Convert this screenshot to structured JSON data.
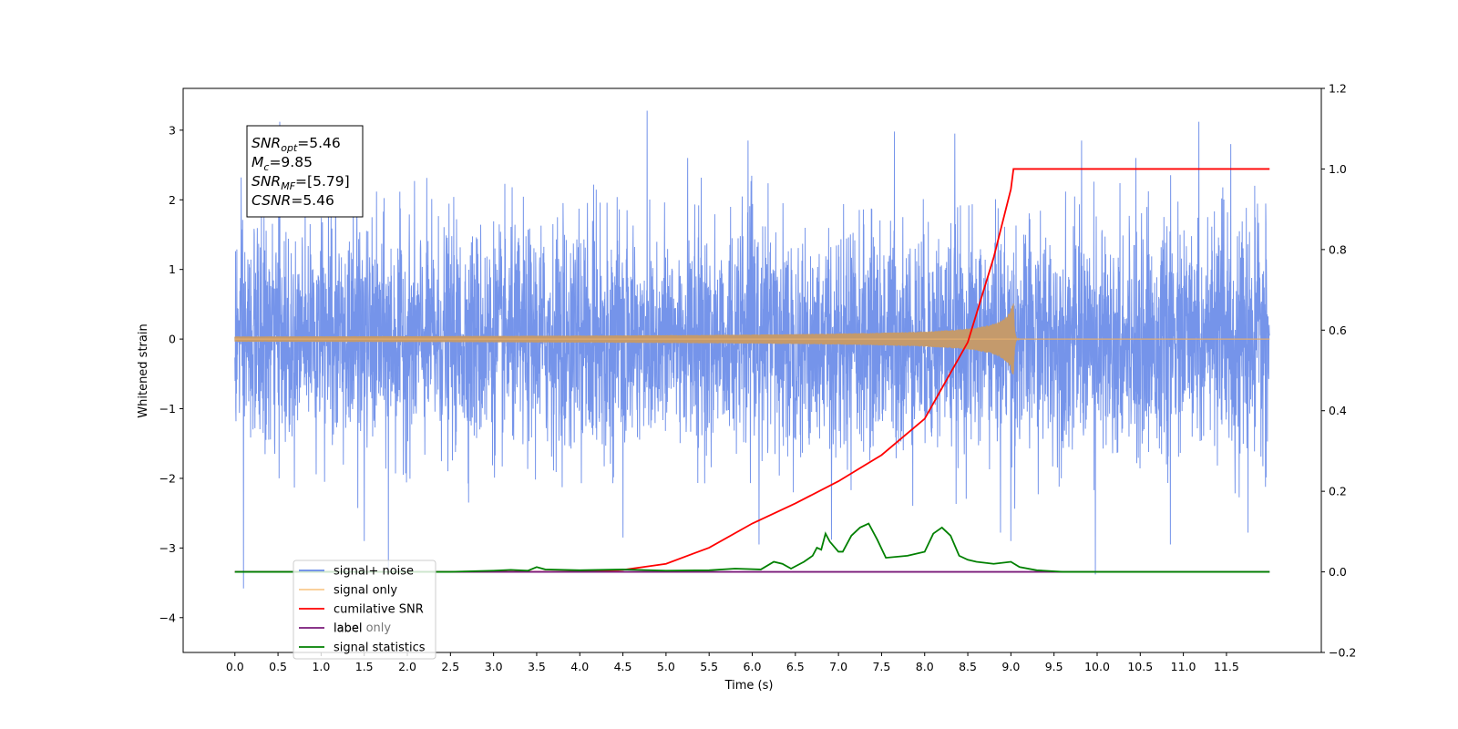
{
  "chart_data": {
    "type": "line",
    "title": "",
    "xlabel": "Time (s)",
    "ylabel": "Whitened strain",
    "xlim": [
      -0.6,
      12.6
    ],
    "ylim": [
      -4.5,
      3.6
    ],
    "ylim_right": [
      -0.2,
      1.2
    ],
    "x_ticks": [
      0.0,
      0.5,
      1.0,
      1.5,
      2.0,
      2.5,
      3.0,
      3.5,
      4.0,
      4.5,
      5.0,
      5.5,
      6.0,
      6.5,
      7.0,
      7.5,
      8.0,
      8.5,
      9.0,
      9.5,
      10.0,
      10.5,
      11.0,
      11.5
    ],
    "x_tick_labels": [
      "0.0",
      "0.5",
      "1.0",
      "1.5",
      "2.0",
      "2.5",
      "3.0",
      "3.5",
      "4.0",
      "4.5",
      "5.0",
      "5.5",
      "6.0",
      "6.5",
      "7.0",
      "7.5",
      "8.0",
      "8.5",
      "9.0",
      "9.5",
      "10.0",
      "10.5",
      "11.0",
      "11.5"
    ],
    "y_ticks": [
      -4,
      -3,
      -2,
      -1,
      0,
      1,
      2,
      3
    ],
    "y_tick_labels": [
      "−4",
      "−3",
      "−2",
      "−1",
      "0",
      "1",
      "2",
      "3"
    ],
    "y_ticks_right": [
      -0.2,
      0.0,
      0.2,
      0.4,
      0.6,
      0.8,
      1.0,
      1.2
    ],
    "y_tick_labels_right": [
      "−0.2",
      "0.0",
      "0.2",
      "0.4",
      "0.6",
      "0.8",
      "1.0",
      "1.2"
    ],
    "grid": false,
    "legend_position": "bottom-left",
    "annotation": {
      "lines": [
        {
          "base": "SNR",
          "sub": "opt",
          "rest": "=5.46"
        },
        {
          "base": "M",
          "sub": "c",
          "rest": "=9.85"
        },
        {
          "base": "SNR",
          "sub": "MF",
          "rest": "=[5.79]"
        },
        {
          "base": "CSNR",
          "sub": "",
          "rest": "=5.46"
        }
      ]
    },
    "series": [
      {
        "name": "signal+ noise",
        "color": "#6688e8",
        "axis": "left",
        "x_range": [
          0.0,
          12.0
        ],
        "envelope_typical": [
          -1.8,
          1.9
        ],
        "extreme_spikes": [
          [
            0.1,
            -3.58
          ],
          [
            0.52,
            3.12
          ],
          [
            1.78,
            -3.3
          ],
          [
            1.5,
            -2.9
          ],
          [
            4.78,
            3.28
          ],
          [
            4.5,
            -2.85
          ],
          [
            5.25,
            2.6
          ],
          [
            5.95,
            2.85
          ],
          [
            6.08,
            -2.95
          ],
          [
            6.92,
            -2.88
          ],
          [
            7.65,
            2.98
          ],
          [
            8.35,
            2.95
          ],
          [
            8.88,
            -2.78
          ],
          [
            9.0,
            -2.9
          ],
          [
            9.82,
            2.85
          ],
          [
            9.98,
            -3.38
          ],
          [
            10.45,
            2.6
          ],
          [
            10.85,
            -2.95
          ],
          [
            11.18,
            3.12
          ],
          [
            11.55,
            2.8
          ],
          [
            11.75,
            -2.78
          ]
        ]
      },
      {
        "name": "signal only",
        "color": "#f5a742",
        "axis": "left",
        "x_range": [
          0.0,
          12.0
        ],
        "chirp_peak_time": 9.03,
        "peak_amplitude": 0.58
      },
      {
        "name": "cumilative SNR",
        "color": "#ff0000",
        "axis": "right",
        "x": [
          0.0,
          4.0,
          4.5,
          5.0,
          5.5,
          6.0,
          6.5,
          7.0,
          7.5,
          8.0,
          8.5,
          8.8,
          9.0,
          9.03,
          9.05,
          12.0
        ],
        "values": [
          0.0,
          0.0,
          0.005,
          0.02,
          0.06,
          0.12,
          0.17,
          0.225,
          0.29,
          0.38,
          0.57,
          0.78,
          0.95,
          1.0,
          1.0,
          1.0
        ]
      },
      {
        "name": "label",
        "color": "#7a1a7a",
        "axis": "right",
        "x": [
          0.0,
          12.0
        ],
        "values": [
          0.0,
          0.0
        ]
      },
      {
        "name": "label only",
        "color": "#7a1a7a",
        "axis": "right",
        "x": [
          0.0,
          12.0
        ],
        "values": [
          0.0,
          0.0
        ]
      },
      {
        "name": "signal statistics",
        "color": "#008000",
        "axis": "right",
        "x": [
          0.0,
          2.5,
          3.0,
          3.2,
          3.4,
          3.5,
          3.6,
          4.0,
          4.5,
          5.0,
          5.5,
          5.8,
          6.1,
          6.25,
          6.35,
          6.45,
          6.6,
          6.7,
          6.75,
          6.8,
          6.85,
          6.9,
          7.0,
          7.05,
          7.15,
          7.25,
          7.35,
          7.45,
          7.55,
          7.8,
          8.0,
          8.1,
          8.2,
          8.3,
          8.4,
          8.5,
          8.6,
          8.8,
          9.0,
          9.1,
          9.3,
          9.6,
          12.0
        ],
        "values": [
          0.0,
          0.0,
          0.003,
          0.005,
          0.003,
          0.012,
          0.006,
          0.004,
          0.006,
          0.003,
          0.004,
          0.008,
          0.006,
          0.025,
          0.02,
          0.008,
          0.025,
          0.04,
          0.06,
          0.055,
          0.095,
          0.075,
          0.05,
          0.05,
          0.09,
          0.11,
          0.12,
          0.08,
          0.035,
          0.04,
          0.05,
          0.095,
          0.11,
          0.09,
          0.04,
          0.03,
          0.025,
          0.02,
          0.025,
          0.012,
          0.004,
          0.0,
          0.0
        ]
      }
    ]
  }
}
